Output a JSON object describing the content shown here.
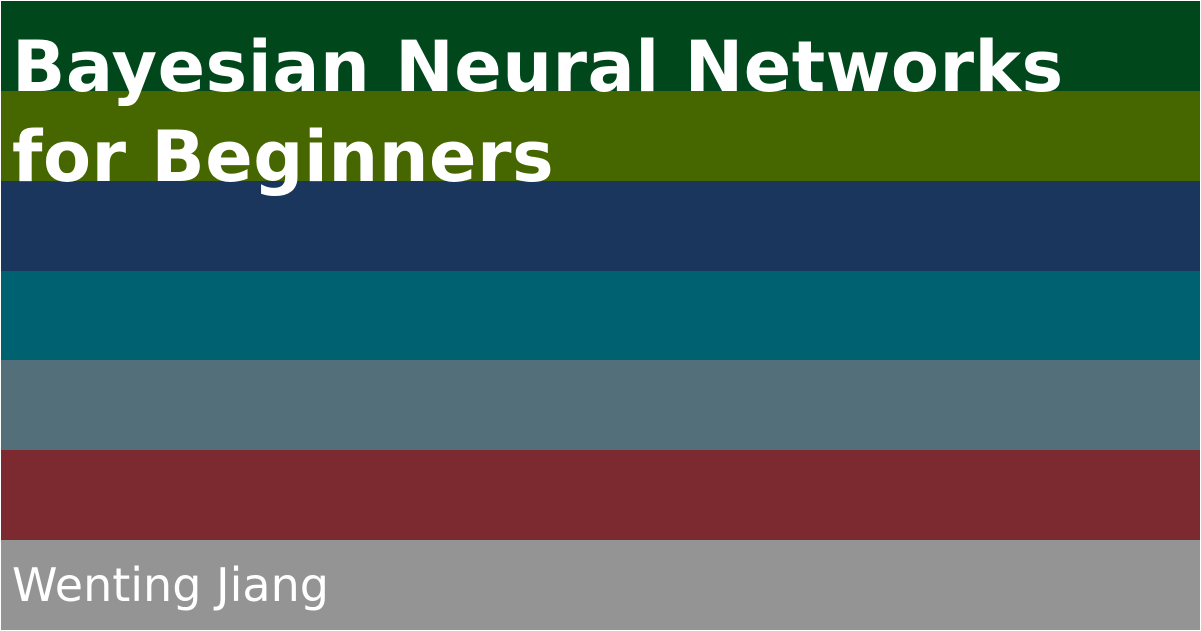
{
  "title_lines": [
    "Bayesian Neural Networks",
    "for Beginners"
  ],
  "author": "Wenting Jiang",
  "colors": {
    "text": "#ffffff",
    "stripes": [
      "#00471b",
      "#466600",
      "#1b365d",
      "#006271",
      "#53707a",
      "#7c2a2f",
      "#949494"
    ]
  }
}
